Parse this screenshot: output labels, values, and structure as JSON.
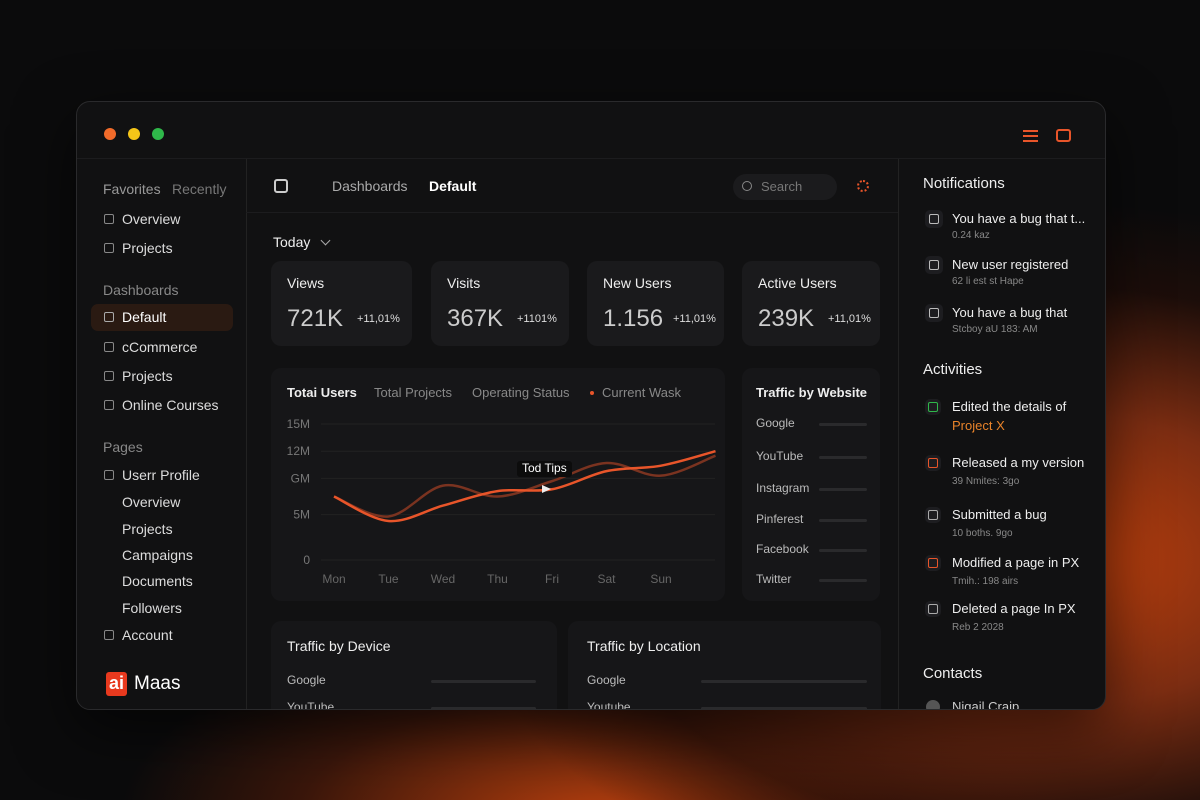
{
  "sidebar": {
    "tabs": [
      "Favorites",
      "Recently"
    ],
    "favorites": [
      "Overview",
      "Projects"
    ],
    "dashboards_heading": "Dashboards",
    "dashboards": [
      "Default",
      "cCommerce",
      "Projects",
      "Online Courses"
    ],
    "pages_heading": "Pages",
    "pages": [
      "Userr Profile",
      "Overview",
      "Projects",
      "Campaigns",
      "Documents",
      "Followers",
      "Account"
    ],
    "logo": {
      "badge": "ai",
      "name": "Maas"
    }
  },
  "topbar": {
    "breadcrumb": [
      "Dashboards",
      "Default"
    ],
    "search": "Search"
  },
  "period": "Today",
  "stats": [
    {
      "label": "Views",
      "value": "721K",
      "change": "+11,01%"
    },
    {
      "label": "Visits",
      "value": "367K",
      "change": "+1101%"
    },
    {
      "label": "New Users",
      "value": "1.156",
      "change": "+11,01%"
    },
    {
      "label": "Active Users",
      "value": "239K",
      "change": "+11,01%"
    }
  ],
  "chart": {
    "type": "line",
    "tabs": [
      "Totai Users",
      "Total Projects",
      "Operating Status",
      "Current Wask"
    ],
    "tooltip": "Tod Tips",
    "categories": [
      "Mon",
      "Tue",
      "Wed",
      "Thu",
      "Fri",
      "Sat",
      "Sun",
      null
    ],
    "series": [
      {
        "color": "#7a3320",
        "values": [
          7000000,
          4800000,
          8200000,
          7000000,
          8700000,
          10700000,
          9300000,
          11500000
        ]
      },
      {
        "color": "#e8552a",
        "values": [
          7000000,
          4300000,
          6000000,
          7600000,
          7800000,
          9800000,
          10400000,
          12000000
        ]
      }
    ],
    "ylim": [
      0,
      15000000
    ],
    "yticks": [
      0,
      {
        "value": 5000000,
        "label": "5M"
      },
      {
        "value": 9000000,
        "label": "GM"
      },
      {
        "value": 12000000,
        "label": "12M"
      },
      {
        "value": 15000000,
        "label": "15M"
      }
    ],
    "grid": true
  },
  "traffic_website": {
    "title": "Traffic by Website",
    "sites": [
      "Google",
      "YouTube",
      "Instagram",
      "Pinferest",
      "Facebook",
      "Twitter"
    ]
  },
  "traffic_device": {
    "title": "Traffic by Device",
    "items": [
      "Google",
      "YouTube"
    ]
  },
  "traffic_location": {
    "title": "Traffic by Location",
    "items": [
      "Google",
      "Youtube"
    ]
  },
  "notifications": {
    "title": "Notifications",
    "items": [
      {
        "text": "You have a bug that t...",
        "time": "0.24 kaz"
      },
      {
        "text": "New user registered",
        "time": "62 li est st Hape"
      },
      {
        "text": "You have a bug that",
        "time": "Stcboy aU 183: AM"
      }
    ]
  },
  "activities": {
    "title": "Activities",
    "items": [
      {
        "text": "Edited the details of",
        "link": "Project X"
      },
      {
        "text": "Released a my version",
        "time": "39 Nmites: 3go"
      },
      {
        "text": "Submitted a bug",
        "time": "10 boths. 9go"
      },
      {
        "text": "Modified a page in PX",
        "time": "Tmih.: 198 airs"
      },
      {
        "text": "Deleted a page In PX",
        "time": "Reb 2 2028"
      }
    ]
  },
  "contacts": {
    "title": "Contacts",
    "items": [
      "Nigail Craip"
    ]
  }
}
